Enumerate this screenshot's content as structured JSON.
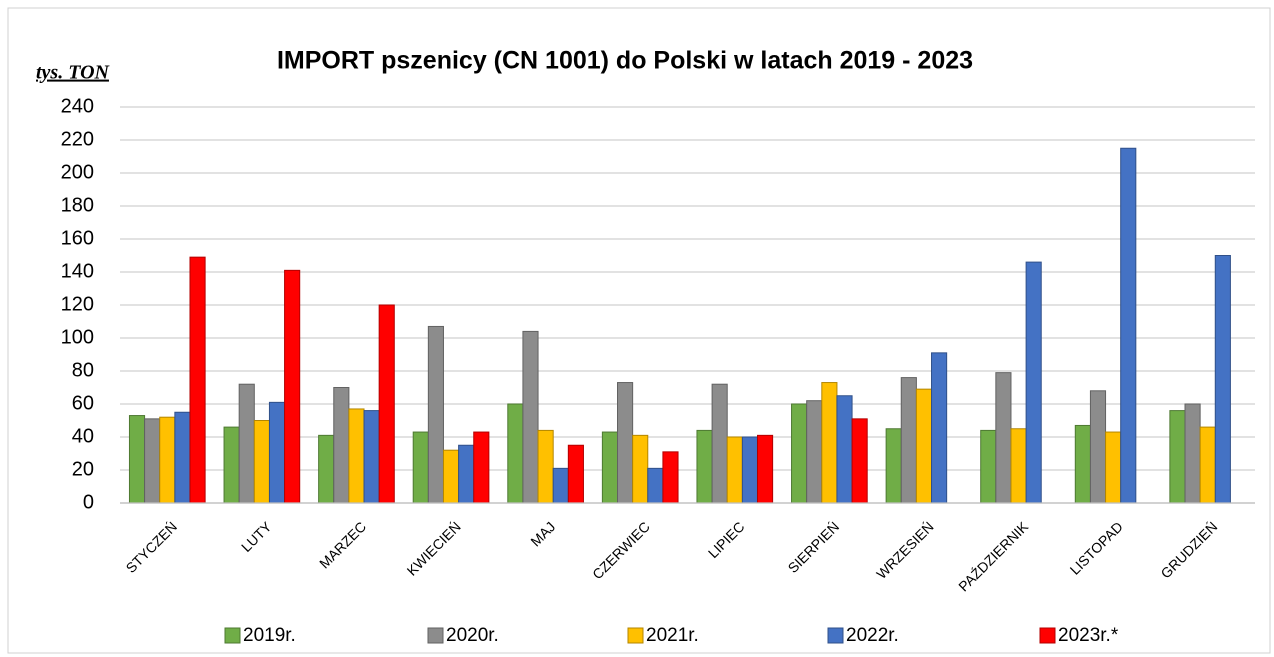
{
  "chart_data": {
    "type": "bar",
    "title": "IMPORT pszenicy (CN 1001) do Polski w latach 2019 - 2023",
    "y_label": "tys. TON",
    "categories": [
      "STYCZEŃ",
      "LUTY",
      "MARZEC",
      "KWIECIEŃ",
      "MAJ",
      "CZERWIEC",
      "LIPIEC",
      "SIERPIEŃ",
      "WRZESIEŃ",
      "PAŹDZIERNIK",
      "LISTOPAD",
      "GRUDZIEŃ"
    ],
    "series": [
      {
        "name": "2019r.",
        "color": "#70ad47",
        "values": [
          53,
          46,
          41,
          43,
          60,
          43,
          44,
          60,
          45,
          44,
          47,
          56
        ]
      },
      {
        "name": "2020r.",
        "color": "#8c8c8c",
        "values": [
          51,
          72,
          70,
          107,
          104,
          73,
          72,
          62,
          76,
          79,
          68,
          60
        ]
      },
      {
        "name": "2021r.",
        "color": "#ffc000",
        "values": [
          52,
          50,
          57,
          32,
          44,
          41,
          40,
          73,
          69,
          45,
          43,
          46
        ]
      },
      {
        "name": "2022r.",
        "color": "#4472c4",
        "values": [
          55,
          61,
          56,
          35,
          21,
          21,
          40,
          65,
          91,
          146,
          215,
          150
        ]
      },
      {
        "name": "2023r.*",
        "color": "#ff0000",
        "values": [
          149,
          141,
          120,
          43,
          35,
          31,
          41,
          51,
          null,
          null,
          null,
          null
        ]
      }
    ],
    "ylim": [
      0,
      240
    ],
    "yticks": [
      0,
      20,
      40,
      60,
      80,
      100,
      120,
      140,
      160,
      180,
      200,
      220,
      240
    ],
    "grid": true,
    "legend": "bottom"
  }
}
